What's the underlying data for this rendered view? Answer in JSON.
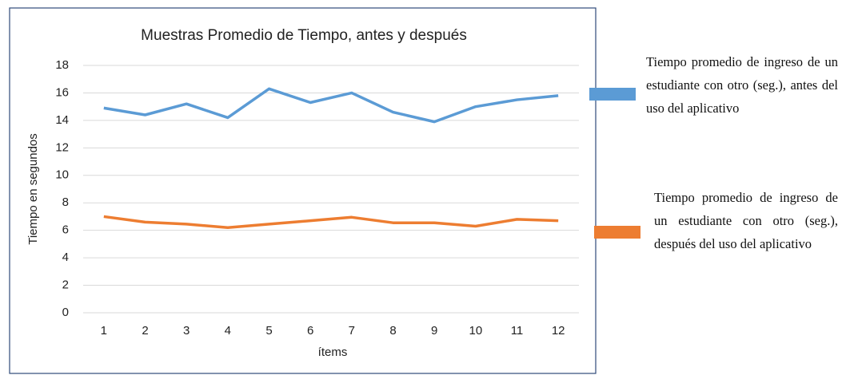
{
  "chart_data": {
    "type": "line",
    "title": "Muestras Promedio de Tiempo,  antes y después",
    "y_label": "Tiempo en segundos",
    "x_label": "ítems",
    "categories": [
      "1",
      "2",
      "3",
      "4",
      "5",
      "6",
      "7",
      "8",
      "9",
      "10",
      "11",
      "12"
    ],
    "series": [
      {
        "name": "Tiempo promedio de ingreso de un estudiante con otro (seg.), antes del uso del aplicativo",
        "color": "#5b9bd5",
        "values": [
          14.9,
          14.4,
          15.2,
          14.2,
          16.3,
          15.3,
          16.0,
          14.6,
          13.9,
          15.0,
          15.5,
          15.8
        ]
      },
      {
        "name": "Tiempo promedio de ingreso de un estudiante con otro (seg.), después del uso del aplicativo",
        "color": "#ed7d31",
        "values": [
          7.0,
          6.6,
          6.45,
          6.2,
          6.45,
          6.7,
          6.95,
          6.55,
          6.55,
          6.3,
          6.8,
          6.7
        ]
      }
    ],
    "ylim": [
      0,
      18
    ],
    "yticks": [
      0,
      2,
      4,
      6,
      8,
      10,
      12,
      14,
      16,
      18
    ],
    "grid": true,
    "legend": "right"
  }
}
